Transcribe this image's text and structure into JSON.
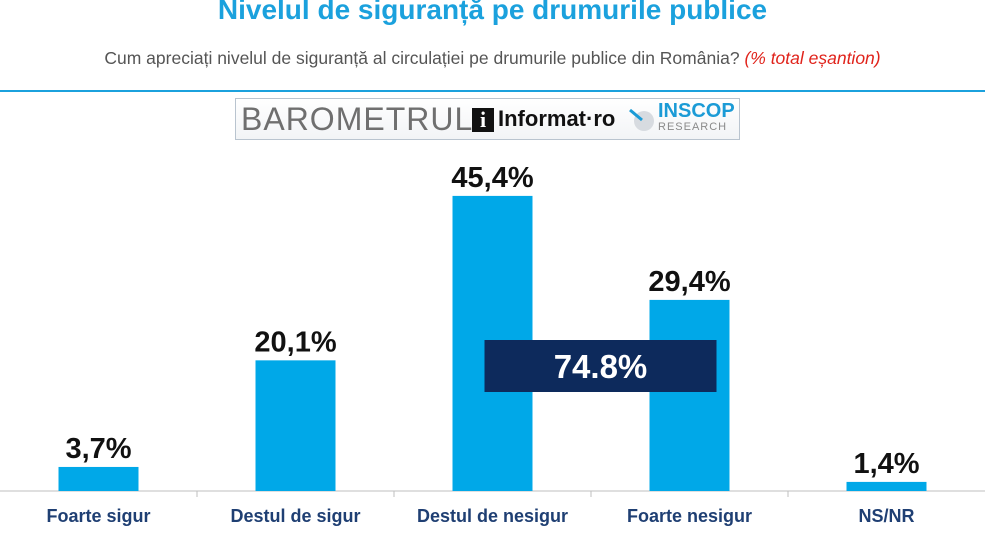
{
  "header": {
    "title": "Nivelul de siguranță pe drumurile publice",
    "subtitle": "Cum apreciați nivelul de siguranță al circulației pe drumurile publice din România?",
    "subtitle_note": "(% total eșantion)"
  },
  "logos": {
    "barometrul": "BAROMETRUL",
    "informat": "Informat·ro",
    "inscop": "INSCOP",
    "research": "RESEARCH"
  },
  "colors": {
    "bar": "#00a8e8",
    "title": "#1ba1dd",
    "highlight_box": "#0d2a5c",
    "note": "#e0231b"
  },
  "chart_data": {
    "type": "bar",
    "title": "Nivelul de siguranță pe drumurile publice",
    "categories": [
      "Foarte sigur",
      "Destul de sigur",
      "Destul de nesigur",
      "Foarte nesigur",
      "NS/NR"
    ],
    "values": [
      3.7,
      20.1,
      45.4,
      29.4,
      1.4
    ],
    "value_labels": [
      "3,7%",
      "20,1%",
      "45,4%",
      "29,4%",
      "1,4%"
    ],
    "ylim": [
      0,
      50
    ],
    "grid": false,
    "annotation": {
      "text": "74.8%",
      "spans": [
        "Destul de nesigur",
        "Foarte nesigur"
      ]
    }
  }
}
